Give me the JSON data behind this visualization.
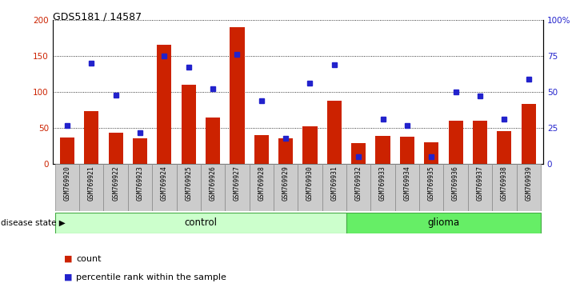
{
  "title": "GDS5181 / 14587",
  "samples": [
    "GSM769920",
    "GSM769921",
    "GSM769922",
    "GSM769923",
    "GSM769924",
    "GSM769925",
    "GSM769926",
    "GSM769927",
    "GSM769928",
    "GSM769929",
    "GSM769930",
    "GSM769931",
    "GSM769932",
    "GSM769933",
    "GSM769934",
    "GSM769935",
    "GSM769936",
    "GSM769937",
    "GSM769938",
    "GSM769939"
  ],
  "counts": [
    37,
    73,
    44,
    36,
    165,
    110,
    65,
    190,
    40,
    36,
    52,
    88,
    29,
    39,
    38,
    30,
    60,
    60,
    46,
    83
  ],
  "percentiles": [
    27,
    70,
    48,
    22,
    75,
    67,
    52,
    76,
    44,
    18,
    56,
    69,
    5,
    31,
    27,
    5,
    50,
    47,
    31,
    59
  ],
  "n_control": 12,
  "n_glioma": 8,
  "bar_color": "#cc2200",
  "dot_color": "#2222cc",
  "control_color": "#ccffcc",
  "glioma_color": "#66ee66",
  "ylim_left": [
    0,
    200
  ],
  "ylim_right": [
    0,
    100
  ],
  "yticks_left": [
    0,
    50,
    100,
    150,
    200
  ],
  "yticks_right": [
    0,
    25,
    50,
    75,
    100
  ],
  "ytick_labels_right": [
    "0",
    "25",
    "50",
    "75",
    "100%"
  ],
  "ytick_labels_left": [
    "0",
    "50",
    "100",
    "150",
    "200"
  ],
  "legend_count_label": "count",
  "legend_pct_label": "percentile rank within the sample",
  "disease_state_label": "disease state",
  "control_label": "control",
  "glioma_label": "glioma"
}
